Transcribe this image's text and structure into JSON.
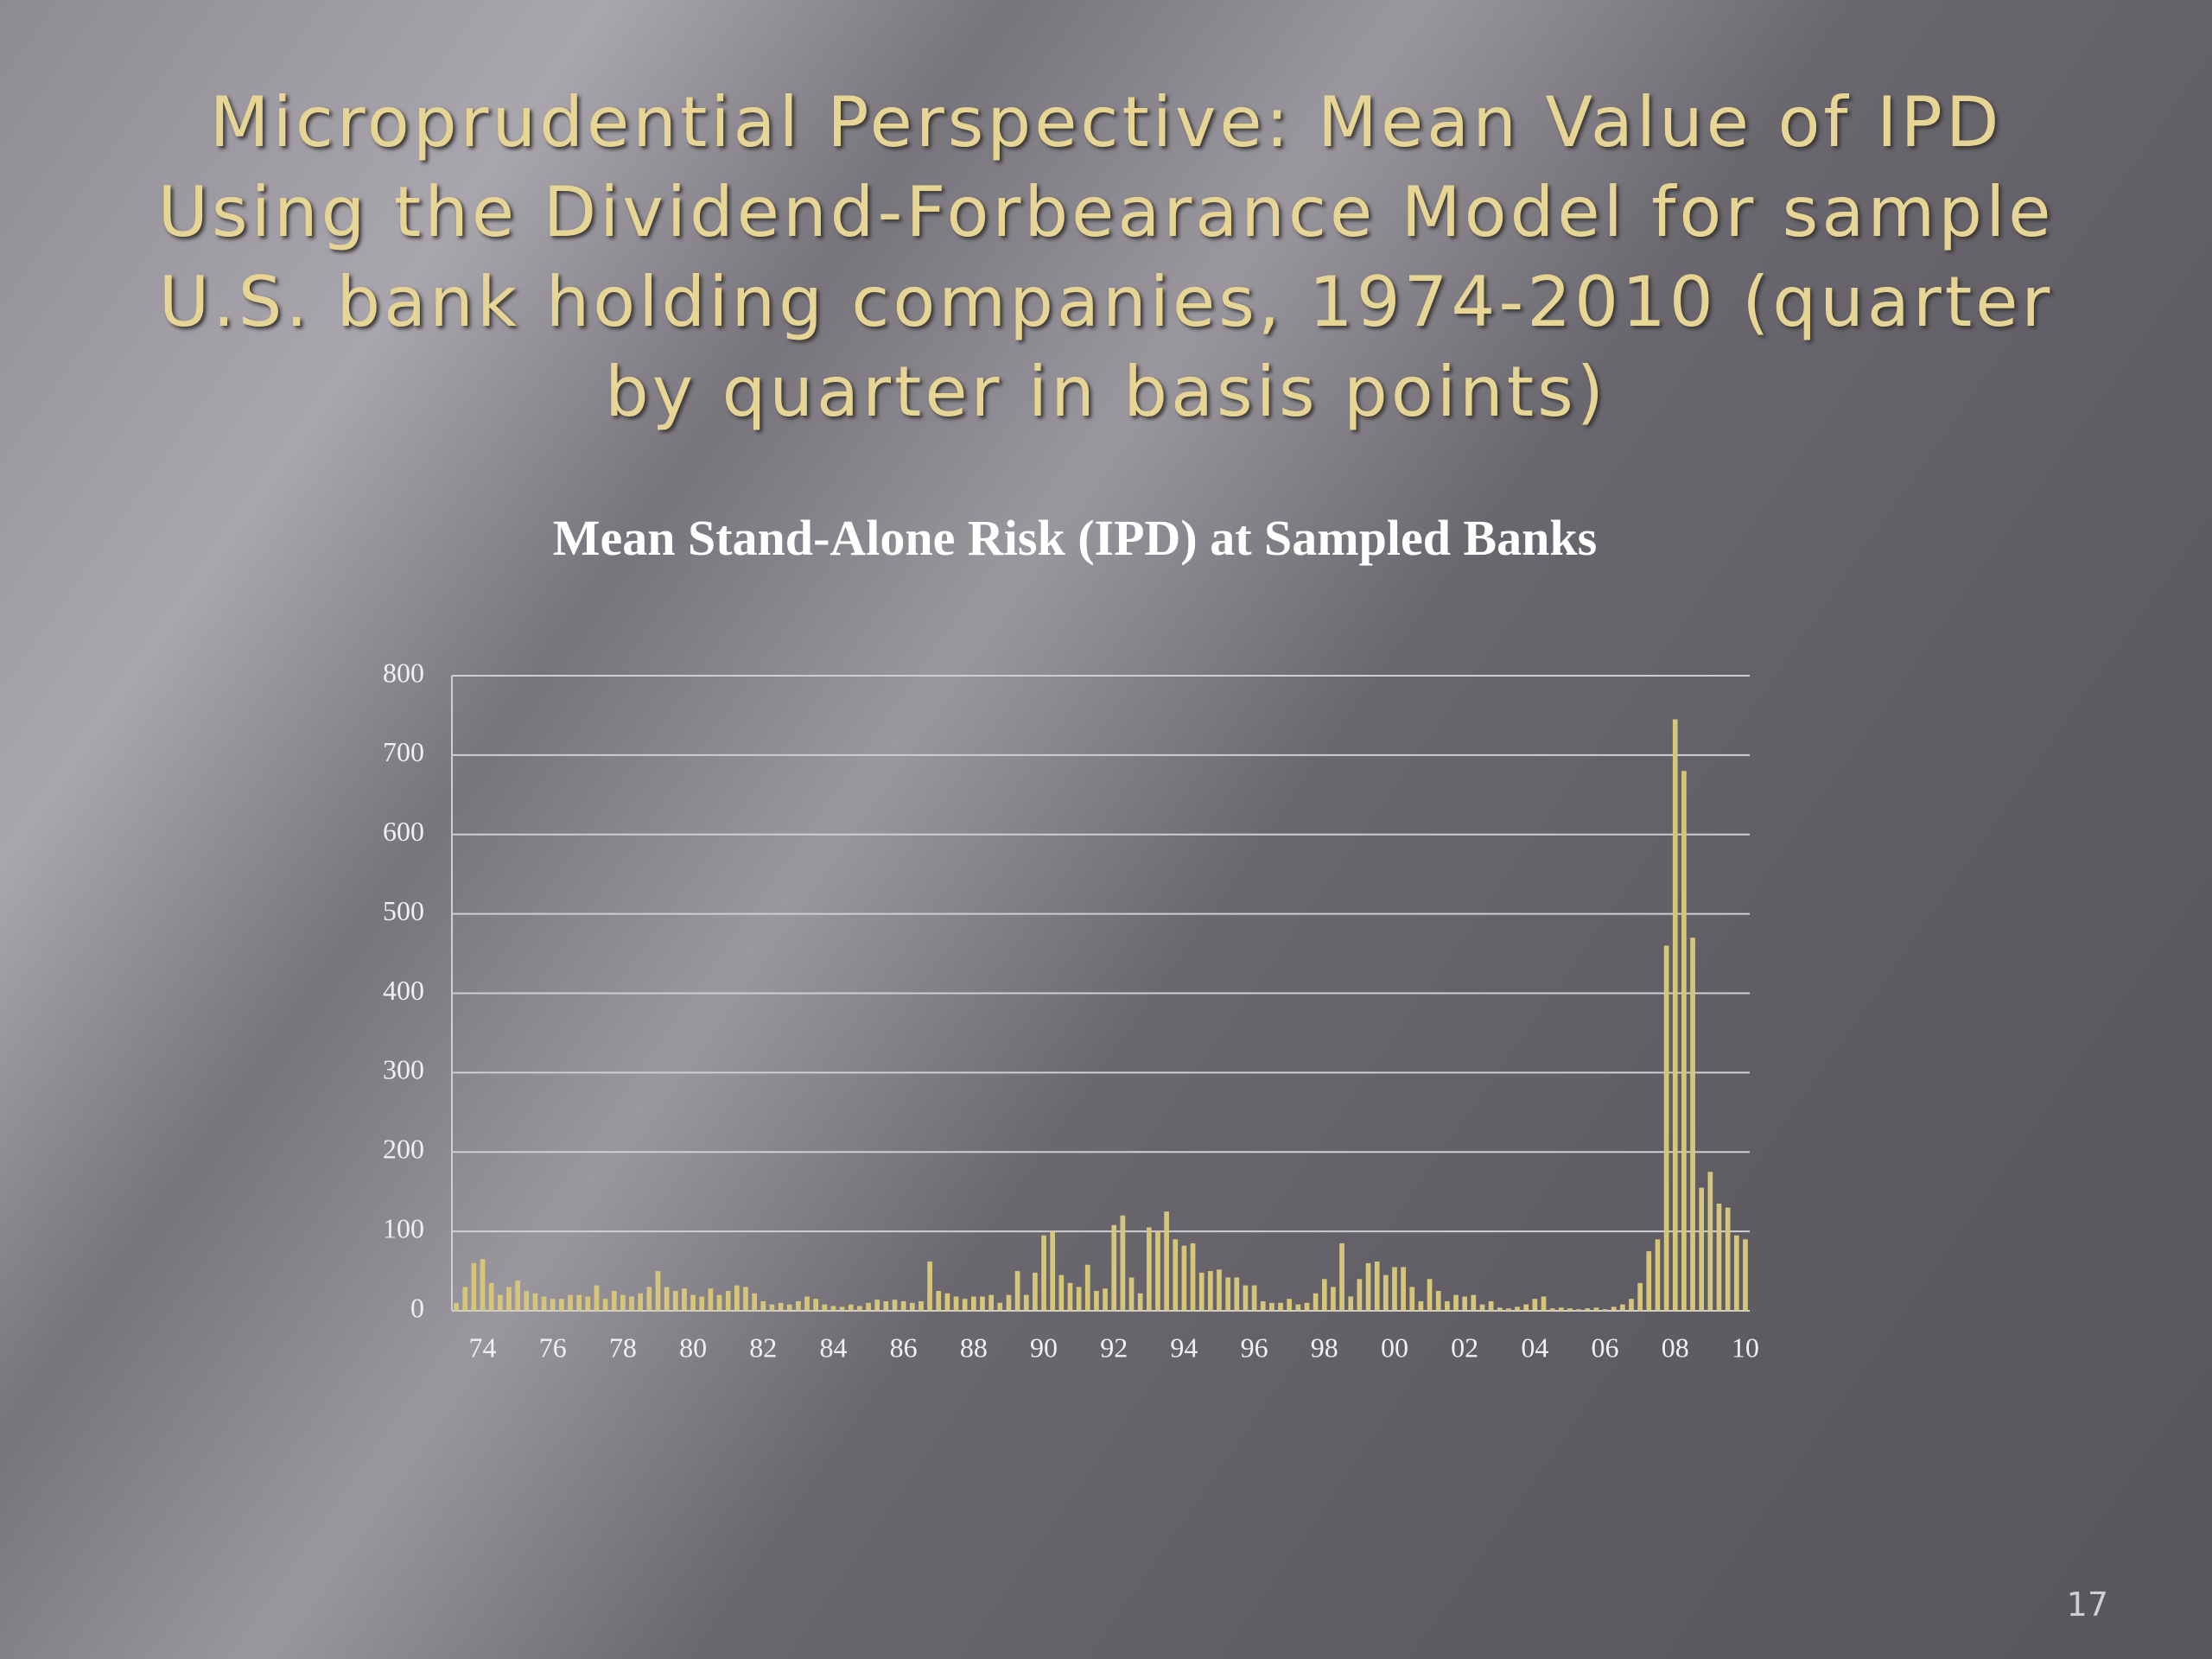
{
  "slide": {
    "title": "Microprudential Perspective:  Mean Value of IPD Using the Dividend-Forbearance Model for sample U.S. bank holding companies, 1974-2010 (quarter by quarter in basis points)",
    "page_number": "17"
  },
  "chart_data": {
    "type": "bar",
    "title": "Mean Stand-Alone Risk (IPD) at Sampled Banks",
    "categories": [
      null,
      null,
      null,
      "74",
      null,
      null,
      null,
      null,
      null,
      null,
      null,
      "76",
      null,
      null,
      null,
      null,
      null,
      null,
      null,
      "78",
      null,
      null,
      null,
      null,
      null,
      null,
      null,
      "80",
      null,
      null,
      null,
      null,
      null,
      null,
      null,
      "82",
      null,
      null,
      null,
      null,
      null,
      null,
      null,
      "84",
      null,
      null,
      null,
      null,
      null,
      null,
      null,
      "86",
      null,
      null,
      null,
      null,
      null,
      null,
      null,
      "88",
      null,
      null,
      null,
      null,
      null,
      null,
      null,
      "90",
      null,
      null,
      null,
      null,
      null,
      null,
      null,
      "92",
      null,
      null,
      null,
      null,
      null,
      null,
      null,
      "94",
      null,
      null,
      null,
      null,
      null,
      null,
      null,
      "96",
      null,
      null,
      null,
      null,
      null,
      null,
      null,
      "98",
      null,
      null,
      null,
      null,
      null,
      null,
      null,
      "00",
      null,
      null,
      null,
      null,
      null,
      null,
      null,
      "02",
      null,
      null,
      null,
      null,
      null,
      null,
      null,
      "04",
      null,
      null,
      null,
      null,
      null,
      null,
      null,
      "06",
      null,
      null,
      null,
      null,
      null,
      null,
      null,
      "08",
      null,
      null,
      null,
      null,
      null,
      null,
      null,
      "10"
    ],
    "values": [
      10,
      30,
      60,
      65,
      35,
      20,
      30,
      38,
      25,
      22,
      18,
      15,
      15,
      20,
      20,
      18,
      32,
      15,
      25,
      20,
      18,
      22,
      30,
      50,
      30,
      25,
      28,
      20,
      18,
      28,
      20,
      25,
      32,
      30,
      22,
      12,
      8,
      10,
      8,
      12,
      18,
      15,
      8,
      6,
      5,
      8,
      6,
      10,
      14,
      12,
      14,
      12,
      10,
      12,
      62,
      25,
      22,
      18,
      15,
      18,
      18,
      20,
      10,
      20,
      50,
      20,
      48,
      95,
      100,
      45,
      35,
      30,
      58,
      25,
      28,
      108,
      120,
      42,
      22,
      105,
      100,
      125,
      90,
      82,
      85,
      48,
      50,
      52,
      42,
      42,
      32,
      32,
      12,
      10,
      10,
      15,
      8,
      10,
      22,
      40,
      30,
      85,
      18,
      40,
      60,
      62,
      45,
      55,
      55,
      30,
      12,
      40,
      25,
      12,
      20,
      18,
      20,
      8,
      12,
      4,
      3,
      5,
      8,
      15,
      18,
      3,
      4,
      3,
      2,
      3,
      4,
      2,
      5,
      8,
      15,
      35,
      75,
      90,
      460,
      745,
      680,
      470,
      155,
      175,
      135,
      130,
      95,
      90
    ],
    "color": "#d6c67c",
    "ylim": [
      0,
      800
    ],
    "yticks": [
      0,
      100,
      200,
      300,
      400,
      500,
      600,
      700,
      800
    ],
    "grid": true
  }
}
